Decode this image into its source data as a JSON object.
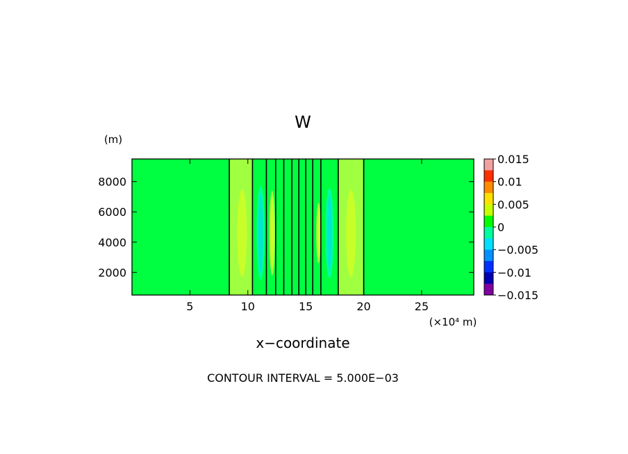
{
  "chart_data": {
    "type": "heatmap",
    "title": "W",
    "ylabel_unit": "(m)",
    "xlabel": "x−coordinate",
    "x_unit": "(×10⁴ m)",
    "footer": "CONTOUR INTERVAL = 5.000E−03",
    "xlim": [
      0,
      29.5
    ],
    "ylim": [
      500,
      9500
    ],
    "x_ticks": [
      5,
      10,
      15,
      20,
      25
    ],
    "x_tick_labels": [
      "5",
      "10",
      "15",
      "20",
      "25"
    ],
    "y_ticks": [
      2000,
      4000,
      6000,
      8000
    ],
    "y_tick_labels": [
      "2000",
      "4000",
      "6000",
      "8000"
    ],
    "background_level": 0,
    "contour_lines_x": [
      8.4,
      10.4,
      11.6,
      12.4,
      13.1,
      13.8,
      14.4,
      15.0,
      15.6,
      16.3,
      17.8,
      20.0
    ],
    "bands": [
      {
        "x0": 8.4,
        "x1": 10.4,
        "level": 0.002
      },
      {
        "x0": 10.4,
        "x1": 11.6,
        "level": 0.0
      },
      {
        "x0": 11.6,
        "x1": 12.4,
        "level": 0.0
      },
      {
        "x0": 15.6,
        "x1": 16.3,
        "level": 0.0
      },
      {
        "x0": 16.3,
        "x1": 17.8,
        "level": 0.0
      },
      {
        "x0": 17.8,
        "x1": 20.0,
        "level": 0.002
      }
    ],
    "cells": [
      {
        "x": 9.5,
        "y": 4600,
        "rx": 0.6,
        "ry": 3400,
        "level": 0.005
      },
      {
        "x": 11.1,
        "y": 4600,
        "rx": 0.35,
        "ry": 3100,
        "level": -0.005
      },
      {
        "x": 12.1,
        "y": 4600,
        "rx": 0.25,
        "ry": 2800,
        "level": 0.005
      },
      {
        "x": 16.1,
        "y": 4600,
        "rx": 0.2,
        "ry": 2000,
        "level": 0.005
      },
      {
        "x": 17.05,
        "y": 4600,
        "rx": 0.35,
        "ry": 3000,
        "level": -0.005
      },
      {
        "x": 18.9,
        "y": 4600,
        "rx": 0.6,
        "ry": 3400,
        "level": 0.005
      }
    ],
    "colorbar": {
      "labels": [
        "0.015",
        "0.01",
        "0.005",
        "0",
        "−0.005",
        "−0.01",
        "−0.015"
      ],
      "colors": [
        "#f0a0a0",
        "#ff3000",
        "#ff8c00",
        "#ffe000",
        "#c8ff00",
        "#00ff00",
        "#00ffa0",
        "#00e0ff",
        "#0090ff",
        "#0030ff",
        "#0000b0",
        "#8000a0"
      ]
    },
    "level_colors": {
      "bg": "#00ff40",
      "pos": "#a0ff40",
      "pos_core": "#c8ff28",
      "neg": "#00ffa0",
      "neg_core": "#00e8d0"
    }
  }
}
